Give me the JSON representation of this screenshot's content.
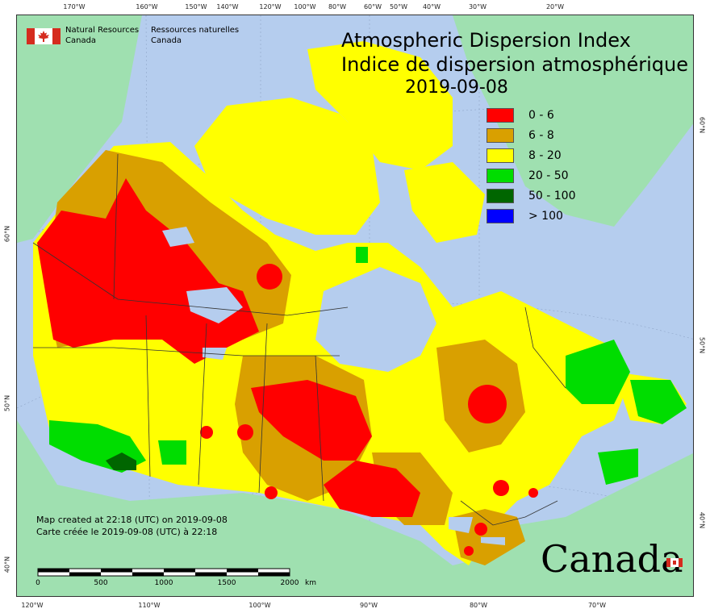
{
  "title_en": "Atmospheric Dispersion Index",
  "title_fr": "Indice de dispersion atmosphérique",
  "date": "2019-09-08",
  "agency": {
    "en_line1": "Natural Resources",
    "en_line2": "Canada",
    "fr_line1": "Ressources naturelles",
    "fr_line2": "Canada"
  },
  "legend": [
    {
      "label": "0 - 6",
      "color": "#ff0000"
    },
    {
      "label": "6 - 8",
      "color": "#d9a000"
    },
    {
      "label": "8 - 20",
      "color": "#ffff00"
    },
    {
      "label": "20 - 50",
      "color": "#00dd00"
    },
    {
      "label": "50 - 100",
      "color": "#006600"
    },
    {
      "label": "> 100",
      "color": "#0000ff"
    }
  ],
  "credits": {
    "en": "Map created at 22:18 (UTC) on 2019-09-08",
    "fr": "Carte créée le 2019-09-08 (UTC) à 22:18"
  },
  "scale": {
    "labels": [
      "0",
      "500",
      "1000",
      "1500",
      "2000"
    ],
    "unit": "km"
  },
  "wordmark": "Canada",
  "graticule": {
    "top": [
      "170°W",
      "160°W",
      "150°W",
      "140°W",
      "120°W",
      "100°W",
      "80°W",
      "60°W",
      "50°W",
      "40°W",
      "30°W",
      "20°W"
    ],
    "bottom": [
      "120°W",
      "110°W",
      "100°W",
      "90°W",
      "80°W",
      "70°W"
    ],
    "left": [
      "60°N",
      "50°N",
      "40°N"
    ],
    "right": [
      "60°N",
      "50°N",
      "40°N"
    ]
  },
  "map_colors": {
    "water": "#b5cdee",
    "land_other": "#9fe0b0",
    "class_0_6": "#ff0000",
    "class_6_8": "#d9a000",
    "class_8_20": "#ffff00",
    "class_20_50": "#00dd00",
    "class_50_100": "#006600"
  }
}
